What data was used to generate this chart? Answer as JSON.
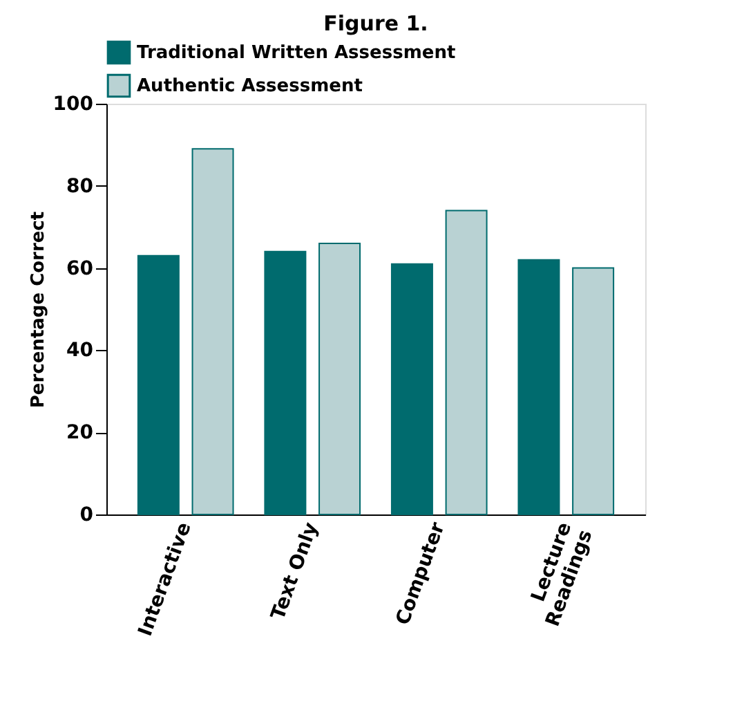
{
  "chart_data": {
    "type": "bar",
    "title": "Figure 1.",
    "ylabel": "Percentage Correct",
    "categories": [
      "Interactive",
      "Text Only",
      "Computer",
      "Lecture Readings"
    ],
    "series": [
      {
        "name": "Traditional Written Assessment",
        "color": "#006b6e",
        "values": [
          63,
          64,
          61,
          62
        ]
      },
      {
        "name": "Authentic Assessment",
        "color": "#b9d2d3",
        "values": [
          89,
          66,
          74,
          60
        ]
      }
    ],
    "ylim": [
      0,
      100
    ],
    "yticks": [
      0,
      20,
      40,
      60,
      80,
      100
    ],
    "grid": false,
    "legend": "top"
  }
}
